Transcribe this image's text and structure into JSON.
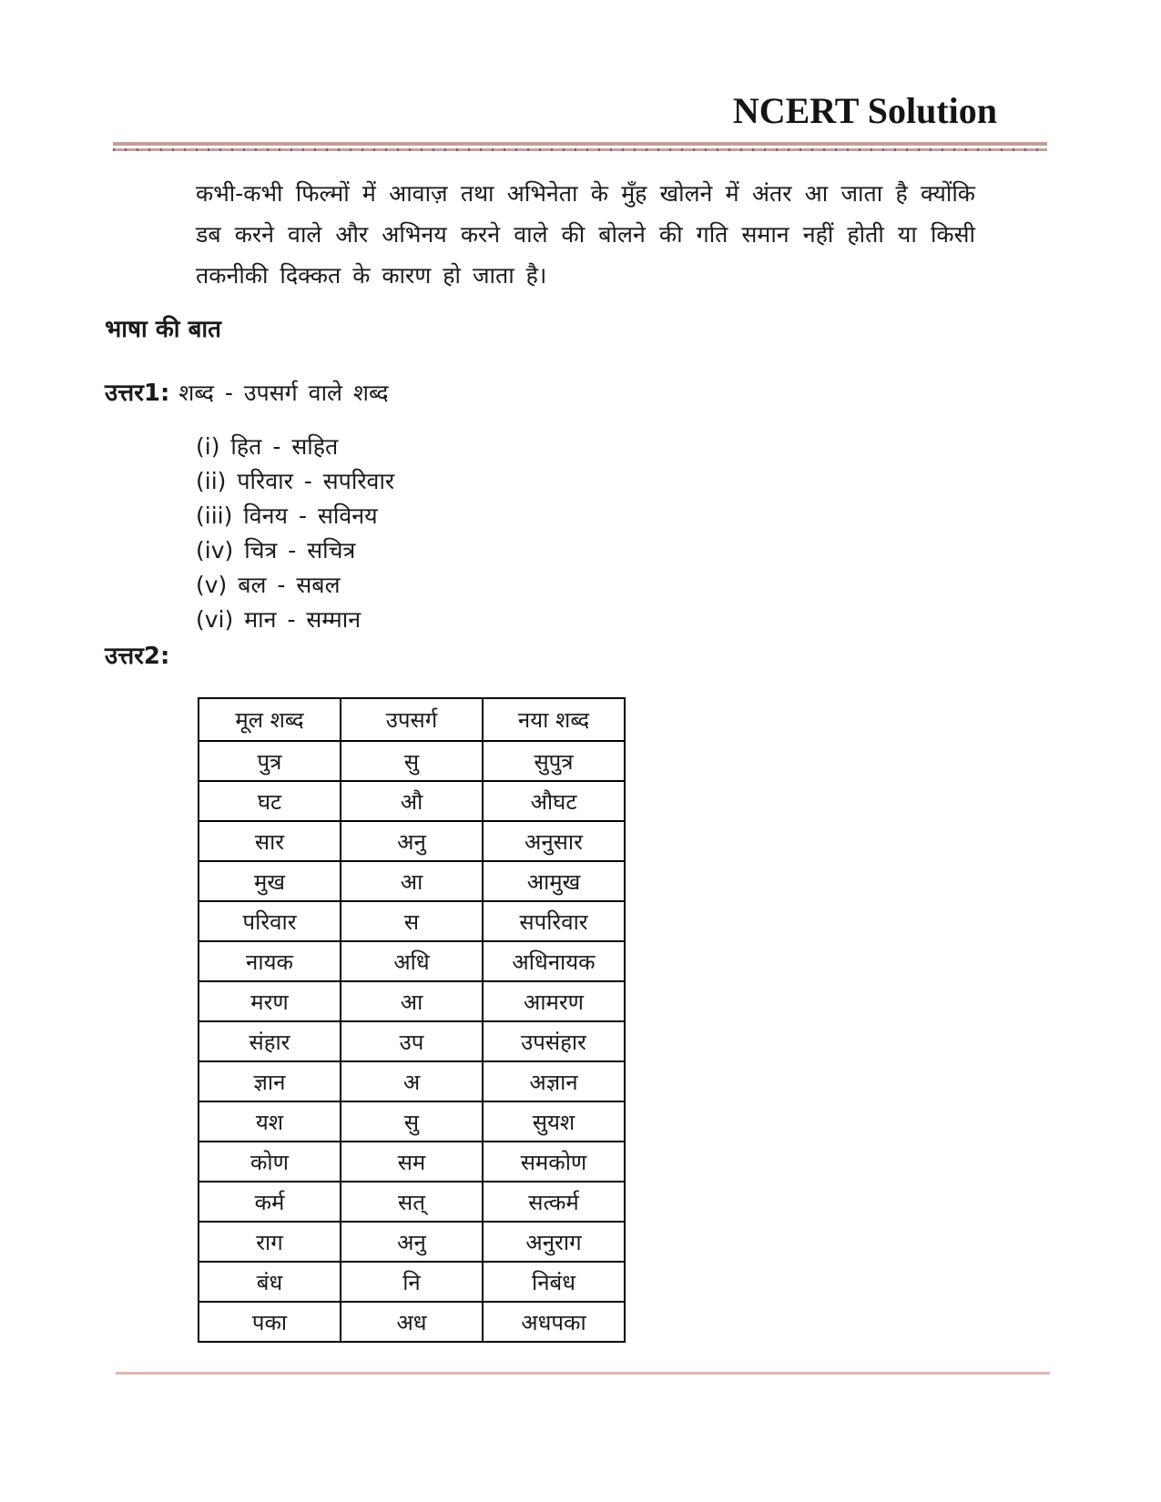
{
  "header": {
    "title": "NCERT Solution"
  },
  "intro_paragraph": "कभी-कभी फिल्मों में आवाज़ तथा अभिनेता के मुँह खोलने में अंतर आ जाता है क्योंकि डब करने वाले और अभिनय करने वाले की बोलने की गति समान नहीं होती या किसी तकनीकी दिक्कत के कारण हो जाता है।",
  "section_heading": "भाषा की बात",
  "answer1": {
    "label": "उत्तर1:",
    "intro": "शब्द - उपसर्ग वाले शब्द",
    "items": [
      "(i) हित - सहित",
      "(ii) परिवार - सपरिवार",
      "(iii) विनय - सविनय",
      "(iv) चित्र - सचित्र",
      "(v) बल - सबल",
      "(vi) मान - सम्मान"
    ]
  },
  "answer2": {
    "label": "उत्तर2:",
    "table": {
      "headers": [
        "मूल शब्द",
        "उपसर्ग",
        "नया शब्द"
      ],
      "rows": [
        [
          "पुत्र",
          "सु",
          "सुपुत्र"
        ],
        [
          "घट",
          "औ",
          "औघट"
        ],
        [
          "सार",
          "अनु",
          "अनुसार"
        ],
        [
          "मुख",
          "आ",
          "आमुख"
        ],
        [
          "परिवार",
          "स",
          "सपरिवार"
        ],
        [
          "नायक",
          "अधि",
          "अधिनायक"
        ],
        [
          "मरण",
          "आ",
          "आमरण"
        ],
        [
          "संहार",
          "उप",
          "उपसंहार"
        ],
        [
          "ज्ञान",
          "अ",
          "अज्ञान"
        ],
        [
          "यश",
          "सु",
          "सुयश"
        ],
        [
          "कोण",
          "सम",
          "समकोण"
        ],
        [
          "कर्म",
          "सत्",
          "सत्कर्म"
        ],
        [
          "राग",
          "अनु",
          "अनुराग"
        ],
        [
          "बंध",
          "नि",
          "निबंध"
        ],
        [
          "पका",
          "अध",
          "अधपका"
        ]
      ]
    }
  },
  "colors": {
    "rule_dark": "#c89e98",
    "rule_light": "#e3b5af",
    "text": "#1a1a1a",
    "table_border": "#000000"
  }
}
